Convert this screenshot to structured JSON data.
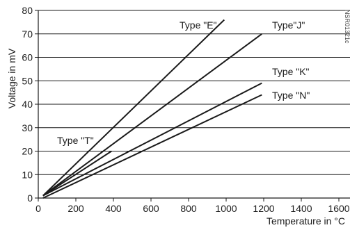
{
  "chart_data": {
    "type": "line",
    "title": "",
    "xlabel": "Temperature in °C",
    "ylabel": "Voltage in mV",
    "xlim": [
      0,
      1600
    ],
    "ylim": [
      0,
      80
    ],
    "x_ticks": [
      0,
      200,
      400,
      600,
      800,
      1000,
      1200,
      1400,
      1600
    ],
    "y_ticks": [
      0,
      10,
      20,
      30,
      40,
      50,
      60,
      70,
      80
    ],
    "x_tick_labels": [
      "0",
      "200",
      "400",
      "600",
      "800",
      "1000",
      "1200",
      "1400",
      "1600"
    ],
    "y_tick_labels": [
      "0",
      "10",
      "20",
      "30",
      "40",
      "50",
      "60",
      "70",
      "80"
    ],
    "grid": "horizontal",
    "series": [
      {
        "name": "Type \"E\"",
        "x": [
          25,
          990
        ],
        "y": [
          1,
          76
        ]
      },
      {
        "name": "Type\"J\"",
        "x": [
          25,
          1190
        ],
        "y": [
          1,
          70
        ]
      },
      {
        "name": "Type \"K\"",
        "x": [
          25,
          1190
        ],
        "y": [
          1,
          49
        ]
      },
      {
        "name": "Type \"N\"",
        "x": [
          25,
          1190
        ],
        "y": [
          0,
          44
        ]
      },
      {
        "name": "Type \"T\"",
        "x": [
          25,
          390
        ],
        "y": [
          1,
          20
        ]
      }
    ],
    "annotation": "NSR01321c",
    "line_color": "#1a1a1a",
    "grid_color": "#1a1a1a"
  }
}
